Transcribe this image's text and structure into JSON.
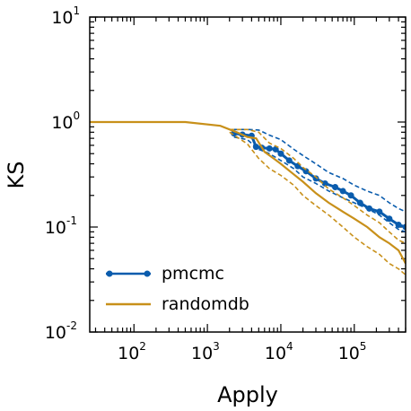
{
  "chart_data": {
    "type": "line",
    "xlabel": "Apply",
    "ylabel": "KS",
    "xscale": "log",
    "yscale": "log",
    "xlim": [
      25,
      500000
    ],
    "ylim": [
      0.01,
      10
    ],
    "x_ticks": [
      {
        "base": "10",
        "exp": "2",
        "value": 100
      },
      {
        "base": "10",
        "exp": "3",
        "value": 1000
      },
      {
        "base": "10",
        "exp": "4",
        "value": 10000
      },
      {
        "base": "10",
        "exp": "5",
        "value": 100000
      }
    ],
    "y_ticks": [
      {
        "base": "10",
        "exp": "-2",
        "value": 0.01
      },
      {
        "base": "10",
        "exp": "-1",
        "value": 0.1
      },
      {
        "base": "10",
        "exp": "0",
        "value": 1
      },
      {
        "base": "10",
        "exp": "1",
        "value": 10
      }
    ],
    "grid": false,
    "legend_position": "bottom-left",
    "series": [
      {
        "name": "pmcmc",
        "color": "#0a5cad",
        "style": "solid-with-markers",
        "x": [
          2300,
          3000,
          4000,
          4600,
          5500,
          7000,
          8500,
          10000,
          13000,
          17000,
          22000,
          30000,
          40000,
          55000,
          70000,
          90000,
          120000,
          160000,
          220000,
          300000,
          400000,
          500000
        ],
        "y": [
          0.78,
          0.76,
          0.74,
          0.58,
          0.57,
          0.56,
          0.55,
          0.5,
          0.43,
          0.38,
          0.34,
          0.29,
          0.26,
          0.24,
          0.22,
          0.2,
          0.17,
          0.15,
          0.14,
          0.12,
          0.105,
          0.1
        ],
        "upper": {
          "x": [
            2300,
            3500,
            5000,
            7000,
            10000,
            15000,
            20000,
            30000,
            45000,
            70000,
            100000,
            150000,
            220000,
            300000,
            400000,
            500000
          ],
          "y": [
            0.85,
            0.85,
            0.84,
            0.75,
            0.68,
            0.55,
            0.48,
            0.4,
            0.33,
            0.29,
            0.25,
            0.22,
            0.2,
            0.17,
            0.15,
            0.14
          ]
        },
        "lower": {
          "x": [
            2300,
            3500,
            5000,
            7000,
            10000,
            15000,
            20000,
            30000,
            45000,
            70000,
            100000,
            150000,
            220000,
            300000,
            400000,
            500000
          ],
          "y": [
            0.72,
            0.68,
            0.55,
            0.5,
            0.43,
            0.36,
            0.3,
            0.26,
            0.22,
            0.19,
            0.17,
            0.15,
            0.13,
            0.11,
            0.095,
            0.09
          ]
        }
      },
      {
        "name": "randomdb",
        "color": "#c8901a",
        "style": "solid",
        "x": [
          25,
          500,
          1500,
          2500,
          3500,
          4600,
          6000,
          8000,
          10000,
          14000,
          20000,
          30000,
          45000,
          70000,
          100000,
          150000,
          220000,
          300000,
          400000,
          500000
        ],
        "y": [
          1.0,
          1.0,
          0.92,
          0.8,
          0.72,
          0.7,
          0.52,
          0.45,
          0.4,
          0.33,
          0.27,
          0.21,
          0.17,
          0.14,
          0.12,
          0.1,
          0.08,
          0.07,
          0.06,
          0.045
        ],
        "upper": {
          "x": [
            2000,
            3500,
            5000,
            7000,
            10000,
            15000,
            20000,
            30000,
            45000,
            70000,
            100000,
            150000,
            220000,
            300000,
            400000,
            500000
          ],
          "y": [
            0.85,
            0.85,
            0.8,
            0.63,
            0.56,
            0.45,
            0.37,
            0.3,
            0.23,
            0.19,
            0.16,
            0.13,
            0.11,
            0.09,
            0.075,
            0.07
          ]
        },
        "lower": {
          "x": [
            2000,
            3500,
            5000,
            7000,
            10000,
            15000,
            20000,
            30000,
            45000,
            70000,
            100000,
            150000,
            220000,
            300000,
            400000,
            500000
          ],
          "y": [
            0.8,
            0.62,
            0.45,
            0.36,
            0.31,
            0.25,
            0.2,
            0.16,
            0.13,
            0.1,
            0.08,
            0.065,
            0.055,
            0.045,
            0.04,
            0.035
          ]
        }
      }
    ]
  }
}
